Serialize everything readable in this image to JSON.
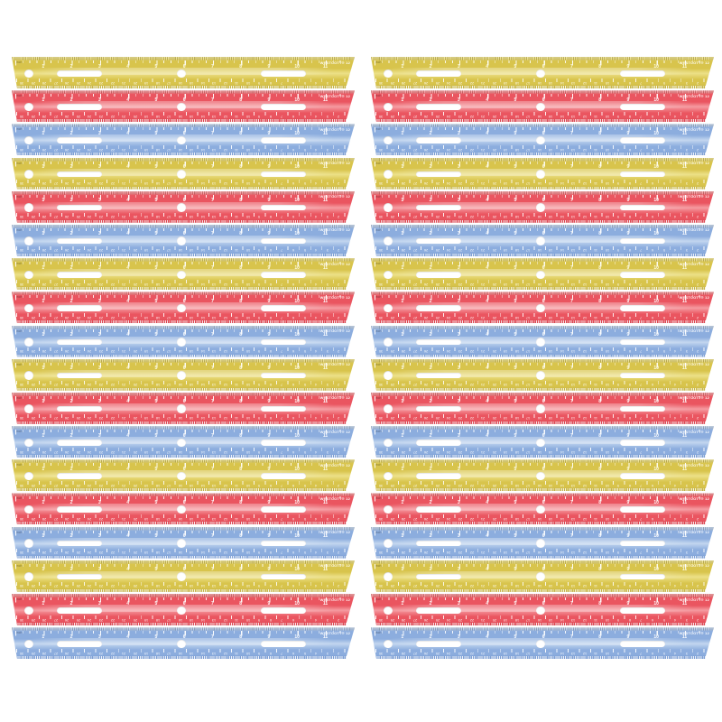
{
  "scene": {
    "background": "#ffffff",
    "description": "Bulk pack product photo: two vertical stacks of 18 translucent plastic 12-inch rulers each, repeating yellow, red, blue"
  },
  "ruler": {
    "brand": "WESTCOTT",
    "registered_mark": "®",
    "length_label": "12",
    "unit_label": "inch",
    "inch_numbers": [
      "1",
      "2",
      "3",
      "4",
      "5",
      "6",
      "7",
      "8",
      "9",
      "10",
      "11"
    ],
    "cm_numbers": [
      "30",
      "29",
      "28",
      "27",
      "26",
      "25",
      "24",
      "23",
      "22",
      "21",
      "20",
      "19",
      "18",
      "17",
      "16",
      "15",
      "14",
      "13",
      "12",
      "11",
      "10",
      "9",
      "8",
      "7",
      "6",
      "5",
      "4",
      "3",
      "2",
      "1"
    ]
  },
  "colors": {
    "yellow": {
      "body": "#d8c44c",
      "light": "#ece087",
      "dark": "#bfae44",
      "tick": "rgba(255,255,255,0.88)",
      "num": "rgba(255,253,235,0.95)"
    },
    "red": {
      "body": "#ea5560",
      "light": "#f59aa0",
      "dark": "#d6414d",
      "tick": "rgba(255,255,255,0.90)",
      "num": "rgba(255,255,255,0.95)"
    },
    "blue": {
      "body": "#8cadde",
      "light": "#c2d6ef",
      "dark": "#7598cf",
      "tick": "rgba(255,255,255,0.92)",
      "num": "rgba(255,255,255,0.96)"
    }
  },
  "columns": [
    {
      "name": "left",
      "sequence": [
        "yellow",
        "red",
        "blue",
        "yellow",
        "red",
        "blue",
        "yellow",
        "red",
        "blue",
        "yellow",
        "red",
        "blue",
        "yellow",
        "red",
        "blue",
        "yellow",
        "red",
        "blue"
      ]
    },
    {
      "name": "right",
      "sequence": [
        "yellow",
        "red",
        "blue",
        "yellow",
        "red",
        "blue",
        "yellow",
        "red",
        "blue",
        "yellow",
        "red",
        "blue",
        "yellow",
        "red",
        "blue",
        "yellow",
        "red",
        "blue"
      ]
    }
  ]
}
